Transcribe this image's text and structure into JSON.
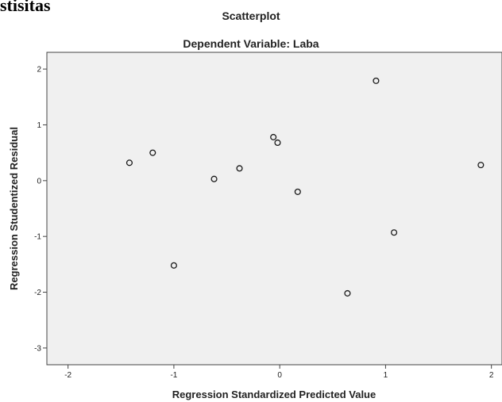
{
  "heading": "stisitas",
  "chart_data": {
    "type": "scatter",
    "title": "Scatterplot",
    "subtitle": "Dependent Variable: Laba",
    "xlabel": "Regression Standardized Predicted Value",
    "ylabel": "Regression Studentized Residual",
    "xlim": [
      -2.2,
      2.1
    ],
    "ylim": [
      -3.3,
      2.3
    ],
    "xticks": [
      -2,
      -1,
      0,
      1,
      2
    ],
    "yticks": [
      2,
      1,
      0,
      -1,
      -2,
      -3
    ],
    "grid": false,
    "background_color": "#f0f0f0",
    "marker": "hollow-circle",
    "points": [
      {
        "x": -1.42,
        "y": 0.32
      },
      {
        "x": -1.2,
        "y": 0.5
      },
      {
        "x": -1.0,
        "y": -1.52
      },
      {
        "x": -0.62,
        "y": 0.03
      },
      {
        "x": -0.38,
        "y": 0.22
      },
      {
        "x": -0.06,
        "y": 0.78
      },
      {
        "x": -0.02,
        "y": 0.68
      },
      {
        "x": 0.17,
        "y": -0.2
      },
      {
        "x": 0.64,
        "y": -2.02
      },
      {
        "x": 0.91,
        "y": 1.79
      },
      {
        "x": 1.08,
        "y": -0.93
      },
      {
        "x": 1.9,
        "y": 0.28
      }
    ]
  }
}
